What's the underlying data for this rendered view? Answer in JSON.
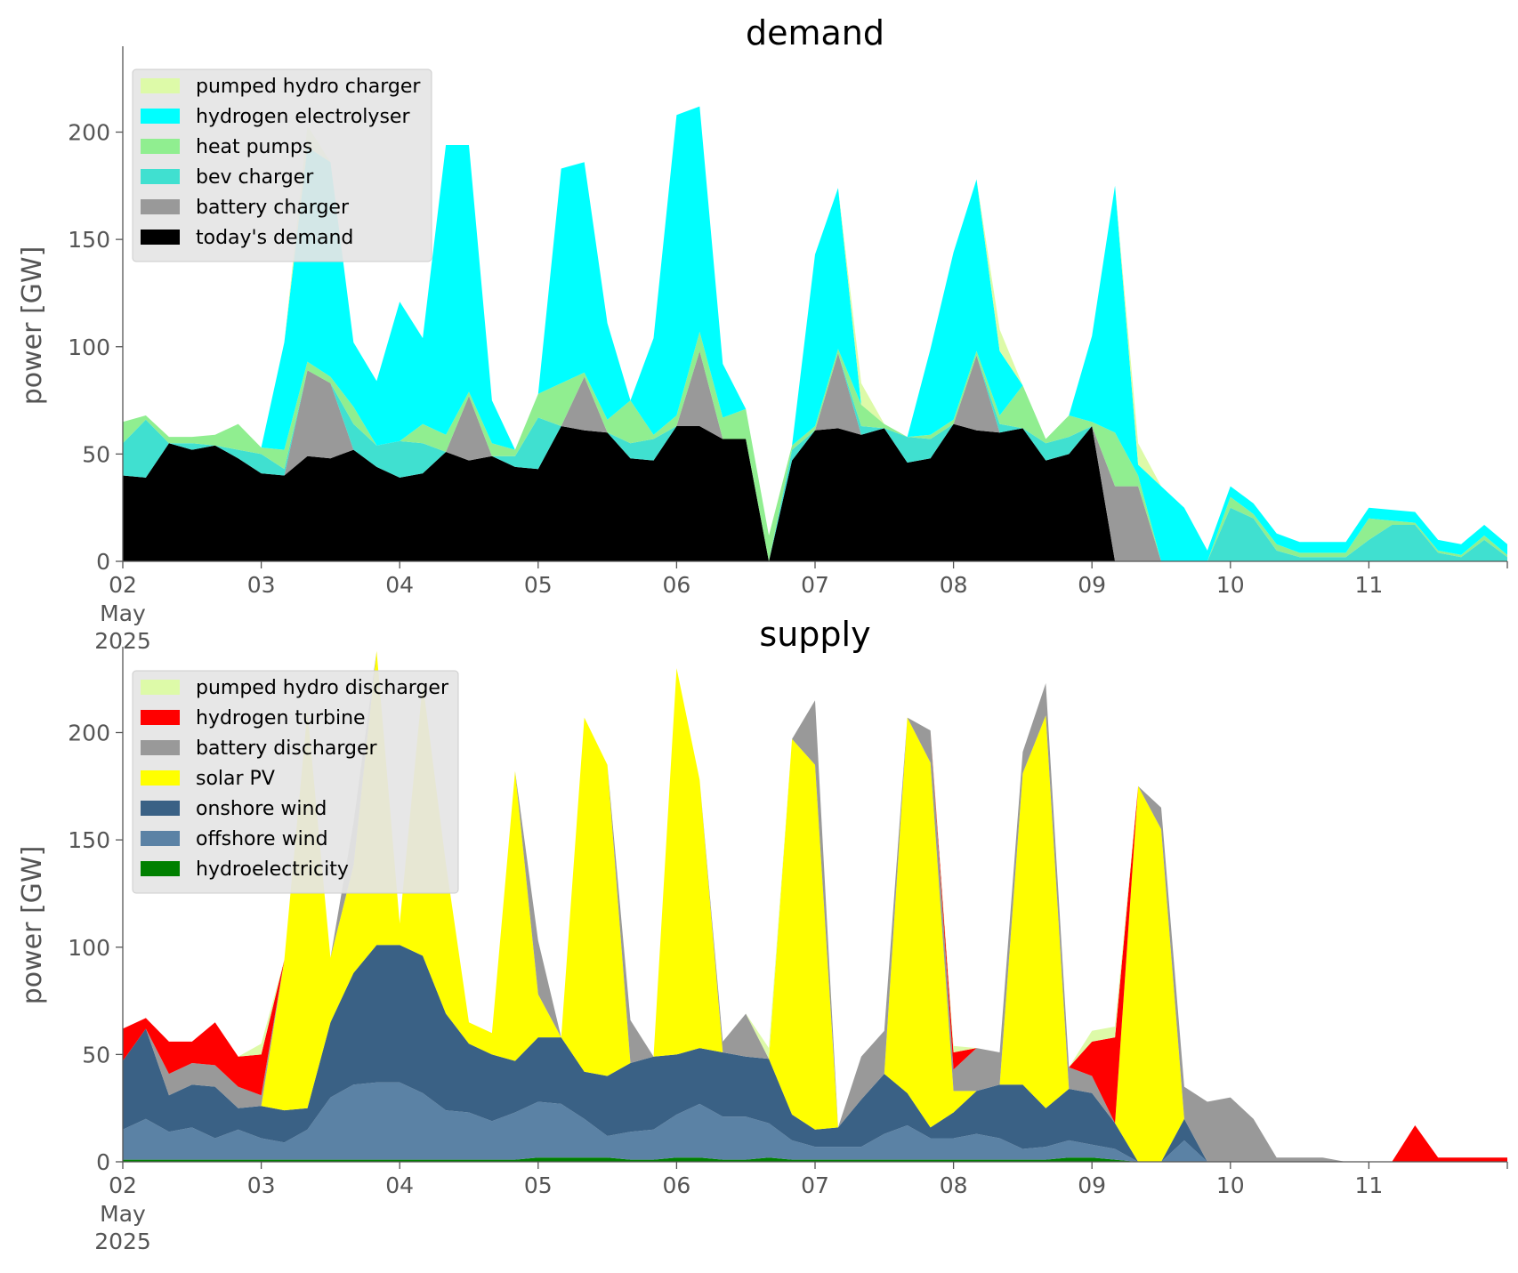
{
  "chart_data": [
    {
      "type": "area",
      "title": "demand",
      "ylabel": "power [GW]",
      "xlabel": "",
      "ylim": [
        0,
        240
      ],
      "yticks": [
        "0",
        "50",
        "100",
        "150",
        "200"
      ],
      "xticks": [
        "02",
        "03",
        "04",
        "05",
        "06",
        "07",
        "08",
        "09",
        "10",
        "11"
      ],
      "xtick_sub": [
        "May",
        "2025"
      ],
      "x": [
        "05-02 00:00",
        "05-02 04:00",
        "05-02 08:00",
        "05-02 12:00",
        "05-02 16:00",
        "05-02 20:00",
        "05-03 00:00",
        "05-03 04:00",
        "05-03 08:00",
        "05-03 12:00",
        "05-03 16:00",
        "05-03 20:00",
        "05-04 00:00",
        "05-04 04:00",
        "05-04 08:00",
        "05-04 12:00",
        "05-04 16:00",
        "05-04 20:00",
        "05-05 00:00",
        "05-05 04:00",
        "05-05 08:00",
        "05-05 12:00",
        "05-05 16:00",
        "05-05 20:00",
        "05-06 00:00",
        "05-06 04:00",
        "05-06 08:00",
        "05-06 12:00",
        "05-06 16:00",
        "05-06 20:00",
        "05-07 00:00",
        "05-07 04:00",
        "05-07 08:00",
        "05-07 12:00",
        "05-07 16:00",
        "05-07 20:00",
        "05-08 00:00",
        "05-08 04:00",
        "05-08 08:00",
        "05-08 12:00",
        "05-08 16:00",
        "05-08 20:00",
        "05-09 00:00",
        "05-09 04:00",
        "05-09 08:00",
        "05-09 12:00",
        "05-09 16:00",
        "05-09 20:00",
        "05-10 00:00",
        "05-10 04:00",
        "05-10 08:00",
        "05-10 12:00",
        "05-10 16:00",
        "05-10 20:00",
        "05-11 00:00",
        "05-11 04:00",
        "05-11 08:00",
        "05-11 12:00",
        "05-11 16:00",
        "05-11 20:00",
        "05-12 00:00"
      ],
      "series": [
        {
          "name": "today's demand",
          "color": "#000000",
          "values": [
            40,
            39,
            55,
            52,
            54,
            48,
            41,
            40,
            49,
            48,
            52,
            44,
            39,
            41,
            51,
            47,
            49,
            44,
            43,
            63,
            61,
            60,
            48,
            47,
            63,
            63,
            57,
            57,
            0,
            47,
            61,
            62,
            59,
            62,
            46,
            48,
            64,
            61,
            60,
            62,
            47,
            50,
            63,
            0,
            0,
            0,
            0,
            0,
            0,
            0,
            0,
            0,
            0,
            0,
            0,
            0,
            0,
            0,
            0,
            0,
            0
          ]
        },
        {
          "name": "battery charger",
          "color": "#999999",
          "values": [
            0,
            0,
            0,
            0,
            0,
            0,
            0,
            0,
            40,
            35,
            0,
            0,
            0,
            0,
            0,
            30,
            0,
            0,
            0,
            0,
            25,
            0,
            0,
            0,
            0,
            35,
            0,
            0,
            0,
            0,
            0,
            35,
            0,
            0,
            0,
            0,
            0,
            35,
            0,
            0,
            0,
            0,
            0,
            35,
            35,
            0,
            0,
            0,
            0,
            0,
            0,
            0,
            0,
            0,
            0,
            0,
            0,
            0,
            0,
            0,
            0
          ]
        },
        {
          "name": "bev charger",
          "color": "#40e0d0",
          "values": [
            15,
            27,
            0,
            3,
            0,
            4,
            9,
            3,
            0,
            0,
            12,
            10,
            17,
            14,
            0,
            0,
            0,
            5,
            24,
            0,
            0,
            0,
            7,
            10,
            0,
            0,
            0,
            0,
            0,
            5,
            0,
            0,
            4,
            0,
            12,
            9,
            0,
            0,
            4,
            0,
            8,
            8,
            0,
            0,
            0,
            0,
            0,
            0,
            25,
            20,
            5,
            2,
            2,
            2,
            10,
            17,
            17,
            4,
            2,
            10,
            2
          ]
        },
        {
          "name": "heat pumps",
          "color": "#90ee90",
          "values": [
            10,
            2,
            3,
            3,
            5,
            12,
            3,
            9,
            4,
            3,
            8,
            0,
            0,
            9,
            8,
            2,
            6,
            3,
            11,
            20,
            2,
            6,
            20,
            2,
            5,
            9,
            10,
            14,
            12,
            2,
            2,
            2,
            10,
            2,
            0,
            2,
            2,
            2,
            4,
            20,
            2,
            10,
            2,
            25,
            5,
            0,
            0,
            0,
            5,
            2,
            3,
            2,
            2,
            2,
            10,
            2,
            1,
            1,
            1,
            2,
            1
          ]
        },
        {
          "name": "hydrogen electrolyser",
          "color": "#00ffff",
          "values": [
            0,
            0,
            0,
            0,
            0,
            0,
            0,
            50,
            100,
            100,
            30,
            30,
            65,
            40,
            135,
            115,
            20,
            0,
            0,
            100,
            98,
            45,
            0,
            45,
            140,
            105,
            25,
            0,
            0,
            0,
            80,
            75,
            0,
            0,
            0,
            40,
            78,
            80,
            30,
            0,
            0,
            0,
            40,
            115,
            5,
            35,
            25,
            5,
            5,
            5,
            5,
            5,
            5,
            5,
            5,
            5,
            5,
            5,
            5,
            5,
            5
          ]
        },
        {
          "name": "pumped hydro charger",
          "color": "#ddfaa8",
          "values": [
            0,
            0,
            0,
            0,
            0,
            0,
            0,
            0,
            10,
            0,
            0,
            0,
            0,
            0,
            0,
            0,
            0,
            0,
            0,
            0,
            0,
            0,
            0,
            0,
            0,
            0,
            0,
            0,
            0,
            0,
            0,
            0,
            10,
            0,
            0,
            0,
            0,
            0,
            10,
            0,
            0,
            0,
            0,
            0,
            10,
            0,
            0,
            0,
            0,
            0,
            0,
            0,
            0,
            0,
            0,
            0,
            0,
            0,
            0,
            0,
            0
          ]
        }
      ],
      "legend": [
        "pumped hydro charger",
        "hydrogen electrolyser",
        "heat pumps",
        "bev charger",
        "battery charger",
        "today's demand"
      ],
      "legend_colors": [
        "#ddfaa8",
        "#00ffff",
        "#90ee90",
        "#40e0d0",
        "#999999",
        "#000000"
      ],
      "legend_placement": "upper-left",
      "grid": false
    },
    {
      "type": "area",
      "title": "supply",
      "ylabel": "power [GW]",
      "xlabel": "",
      "ylim": [
        0,
        240
      ],
      "yticks": [
        "0",
        "50",
        "100",
        "150",
        "200"
      ],
      "xticks": [
        "02",
        "03",
        "04",
        "05",
        "06",
        "07",
        "08",
        "09",
        "10",
        "11"
      ],
      "xtick_sub": [
        "May",
        "2025"
      ],
      "x": [
        "05-02 00:00",
        "05-02 04:00",
        "05-02 08:00",
        "05-02 12:00",
        "05-02 16:00",
        "05-02 20:00",
        "05-03 00:00",
        "05-03 04:00",
        "05-03 08:00",
        "05-03 12:00",
        "05-03 16:00",
        "05-03 20:00",
        "05-04 00:00",
        "05-04 04:00",
        "05-04 08:00",
        "05-04 12:00",
        "05-04 16:00",
        "05-04 20:00",
        "05-05 00:00",
        "05-05 04:00",
        "05-05 08:00",
        "05-05 12:00",
        "05-05 16:00",
        "05-05 20:00",
        "05-06 00:00",
        "05-06 04:00",
        "05-06 08:00",
        "05-06 12:00",
        "05-06 16:00",
        "05-06 20:00",
        "05-07 00:00",
        "05-07 04:00",
        "05-07 08:00",
        "05-07 12:00",
        "05-07 16:00",
        "05-07 20:00",
        "05-08 00:00",
        "05-08 04:00",
        "05-08 08:00",
        "05-08 12:00",
        "05-08 16:00",
        "05-08 20:00",
        "05-09 00:00",
        "05-09 04:00",
        "05-09 08:00",
        "05-09 12:00",
        "05-09 16:00",
        "05-09 20:00",
        "05-10 00:00",
        "05-10 04:00",
        "05-10 08:00",
        "05-10 12:00",
        "05-10 16:00",
        "05-10 20:00",
        "05-11 00:00",
        "05-11 04:00",
        "05-11 08:00",
        "05-11 12:00",
        "05-11 16:00",
        "05-11 20:00",
        "05-12 00:00"
      ],
      "series": [
        {
          "name": "hydroelectricity",
          "color": "#008000",
          "values": [
            1,
            1,
            1,
            1,
            1,
            1,
            1,
            1,
            1,
            1,
            1,
            1,
            1,
            1,
            1,
            1,
            1,
            1,
            2,
            2,
            2,
            2,
            1,
            1,
            2,
            2,
            1,
            1,
            2,
            1,
            1,
            1,
            1,
            1,
            1,
            1,
            1,
            1,
            1,
            1,
            1,
            2,
            2,
            1,
            0,
            0,
            0,
            0,
            0,
            0,
            0,
            0,
            0,
            0,
            0,
            0,
            0,
            0,
            0,
            0,
            0
          ]
        },
        {
          "name": "offshore wind",
          "color": "#5b82a5",
          "values": [
            14,
            19,
            13,
            15,
            10,
            14,
            10,
            8,
            14,
            29,
            35,
            36,
            36,
            31,
            23,
            22,
            18,
            22,
            26,
            25,
            18,
            10,
            13,
            14,
            20,
            25,
            20,
            20,
            16,
            9,
            6,
            6,
            6,
            12,
            16,
            10,
            10,
            12,
            10,
            5,
            6,
            8,
            6,
            5,
            0,
            0,
            10,
            0,
            0,
            0,
            0,
            0,
            0,
            0,
            0,
            0,
            0,
            0,
            0,
            0,
            0
          ]
        },
        {
          "name": "onshore wind",
          "color": "#3a6185",
          "values": [
            32,
            42,
            17,
            20,
            24,
            10,
            15,
            15,
            10,
            35,
            52,
            64,
            64,
            64,
            45,
            32,
            31,
            24,
            30,
            31,
            22,
            28,
            32,
            34,
            28,
            26,
            30,
            28,
            30,
            12,
            8,
            9,
            22,
            28,
            15,
            5,
            12,
            20,
            25,
            30,
            18,
            24,
            24,
            12,
            0,
            0,
            10,
            0,
            0,
            0,
            0,
            0,
            0,
            0,
            0,
            0,
            0,
            0,
            0,
            0,
            0
          ]
        },
        {
          "name": "solar PV",
          "color": "#ffff00",
          "values": [
            0,
            0,
            0,
            0,
            0,
            0,
            0,
            70,
            185,
            30,
            50,
            137,
            10,
            127,
            70,
            10,
            10,
            135,
            20,
            0,
            165,
            145,
            0,
            0,
            180,
            125,
            0,
            0,
            0,
            175,
            170,
            0,
            0,
            0,
            175,
            170,
            10,
            0,
            0,
            145,
            183,
            0,
            0,
            0,
            175,
            155,
            0,
            0,
            0,
            0,
            0,
            0,
            0,
            0,
            0,
            0,
            0,
            0,
            0,
            0,
            0
          ]
        },
        {
          "name": "battery discharger",
          "color": "#999999",
          "values": [
            0,
            0,
            10,
            10,
            10,
            10,
            5,
            0,
            0,
            0,
            20,
            0,
            0,
            0,
            0,
            0,
            0,
            0,
            25,
            0,
            0,
            0,
            20,
            0,
            0,
            0,
            5,
            20,
            0,
            0,
            30,
            0,
            20,
            20,
            0,
            15,
            10,
            20,
            15,
            10,
            15,
            10,
            8,
            0,
            0,
            10,
            15,
            28,
            30,
            20,
            2,
            2,
            2,
            0,
            0,
            0,
            0,
            0,
            0,
            0,
            0
          ]
        },
        {
          "name": "hydrogen turbine",
          "color": "#ff0000",
          "values": [
            15,
            5,
            15,
            10,
            20,
            14,
            19,
            0,
            0,
            0,
            0,
            0,
            0,
            0,
            0,
            0,
            0,
            0,
            0,
            0,
            0,
            0,
            0,
            0,
            0,
            0,
            0,
            0,
            0,
            0,
            0,
            0,
            0,
            0,
            0,
            0,
            8,
            0,
            0,
            0,
            0,
            0,
            16,
            40,
            0,
            0,
            0,
            0,
            0,
            0,
            0,
            0,
            0,
            0,
            0,
            0,
            17,
            2,
            2,
            2,
            2
          ]
        },
        {
          "name": "pumped hydro discharger",
          "color": "#ddfaa8",
          "values": [
            0,
            0,
            0,
            0,
            0,
            0,
            5,
            0,
            0,
            0,
            0,
            0,
            0,
            0,
            0,
            0,
            0,
            0,
            0,
            0,
            0,
            0,
            0,
            0,
            0,
            0,
            0,
            0,
            5,
            0,
            0,
            0,
            0,
            0,
            0,
            0,
            3,
            0,
            0,
            0,
            0,
            0,
            5,
            5,
            0,
            0,
            0,
            0,
            0,
            0,
            0,
            0,
            0,
            0,
            0,
            0,
            0,
            0,
            0,
            0,
            0
          ]
        }
      ],
      "legend": [
        "pumped hydro discharger",
        "hydrogen turbine",
        "battery discharger",
        "solar PV",
        "onshore wind",
        "offshore wind",
        "hydroelectricity"
      ],
      "legend_colors": [
        "#ddfaa8",
        "#ff0000",
        "#999999",
        "#ffff00",
        "#3a6185",
        "#5b82a5",
        "#008000"
      ],
      "legend_placement": "upper-left",
      "grid": false
    }
  ]
}
